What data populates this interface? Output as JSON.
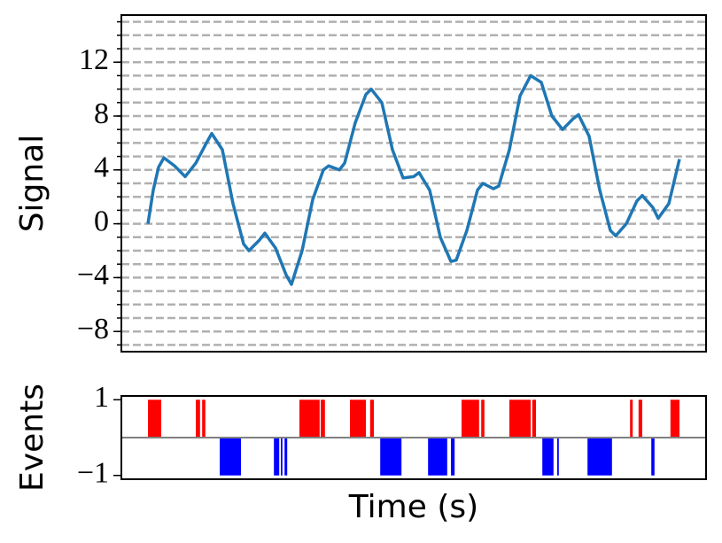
{
  "chart_data": [
    {
      "type": "line",
      "ylabel": "Signal",
      "color": "#1f77b4",
      "xlim": [
        -0.5,
        10.5
      ],
      "ylim": [
        -9.5,
        15.5
      ],
      "yticks": [
        {
          "value": -8,
          "label": "−8"
        },
        {
          "value": -4,
          "label": "−4"
        },
        0,
        4,
        8,
        12
      ],
      "yminor_ticks": [
        -9,
        -8,
        -7,
        -6,
        -5,
        -4,
        -3,
        -2,
        -1,
        0,
        1,
        2,
        3,
        4,
        5,
        6,
        7,
        8,
        9,
        10,
        11,
        12,
        13,
        14,
        15
      ],
      "grid": true,
      "x": [
        0,
        0.1,
        0.2,
        0.3,
        0.5,
        0.7,
        0.9,
        1.1,
        1.2,
        1.4,
        1.6,
        1.8,
        1.9,
        2.1,
        2.2,
        2.4,
        2.6,
        2.7,
        2.9,
        3.1,
        3.3,
        3.4,
        3.6,
        3.7,
        3.9,
        4.1,
        4.2,
        4.4,
        4.6,
        4.8,
        5.0,
        5.1,
        5.3,
        5.5,
        5.7,
        5.8,
        6.0,
        6.2,
        6.3,
        6.5,
        6.6,
        6.8,
        7.0,
        7.2,
        7.4,
        7.6,
        7.8,
        8.0,
        8.1,
        8.3,
        8.5,
        8.7,
        8.8,
        9.0,
        9.2,
        9.3,
        9.5,
        9.6,
        9.8,
        10.0
      ],
      "values": [
        0,
        2.5,
        4.2,
        4.9,
        4.3,
        3.5,
        4.5,
        6.0,
        6.7,
        5.5,
        1.5,
        -1.5,
        -2.0,
        -1.2,
        -0.7,
        -1.8,
        -3.8,
        -4.5,
        -2.0,
        1.8,
        4.0,
        4.3,
        4.0,
        4.5,
        7.5,
        9.6,
        10.0,
        9.0,
        5.5,
        3.4,
        3.5,
        3.8,
        2.5,
        -1.0,
        -2.8,
        -2.7,
        -0.5,
        2.5,
        3.0,
        2.6,
        2.8,
        5.5,
        9.5,
        11.0,
        10.5,
        8.0,
        7.0,
        7.8,
        8.1,
        6.5,
        2.5,
        -0.5,
        -0.9,
        0,
        1.7,
        2.1,
        1.2,
        0.4,
        1.5,
        4.8
      ]
    },
    {
      "type": "event",
      "ylabel": "Events",
      "xlabel": "Time (s)",
      "xlim": [
        -0.5,
        10.5
      ],
      "ylim": [
        -1.1,
        1.1
      ],
      "yticks": [
        1,
        {
          "value": -1,
          "label": "−1"
        }
      ],
      "baseline_color": "#808080",
      "series": [
        {
          "color": "#ff0000",
          "starts": [
            0.0,
            0.9,
            1.02,
            2.85,
            3.25,
            3.8,
            4.18,
            5.9,
            6.27,
            6.8,
            7.23,
            9.07,
            9.23,
            9.83
          ],
          "ends": [
            0.25,
            0.98,
            1.08,
            3.23,
            3.33,
            4.1,
            4.25,
            6.23,
            6.33,
            7.2,
            7.3,
            9.12,
            9.3,
            10.0
          ],
          "values": [
            1,
            1,
            1,
            1,
            1,
            1,
            1,
            1,
            1,
            1,
            1,
            1,
            1,
            1
          ]
        },
        {
          "color": "#0000ff",
          "starts": [
            1.35,
            2.37,
            2.5,
            2.57,
            4.37,
            5.27,
            5.7,
            7.42,
            7.7,
            8.27,
            9.47
          ],
          "ends": [
            1.75,
            2.47,
            2.53,
            2.62,
            4.77,
            5.63,
            5.77,
            7.63,
            7.73,
            8.73,
            9.53
          ],
          "values": [
            -1,
            -1,
            -1,
            -1,
            -1,
            -1,
            -1,
            -1,
            -1,
            -1,
            -1
          ]
        }
      ]
    }
  ]
}
